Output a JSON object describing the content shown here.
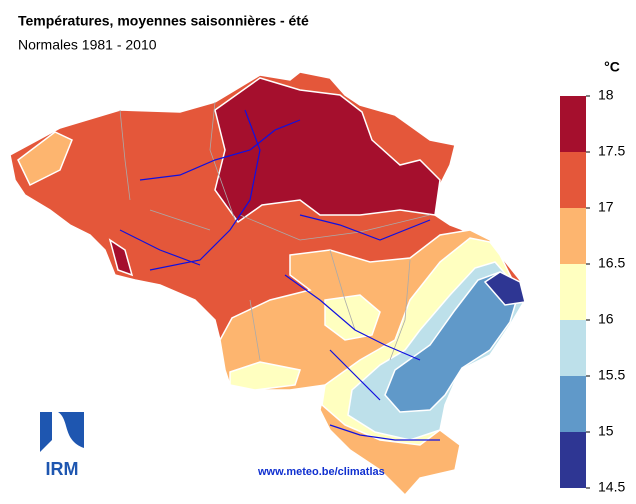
{
  "header": {
    "title": "Températures, moyennes saisonnières - été",
    "subtitle": "Normales 1981 - 2010"
  },
  "legend": {
    "unit": "°C",
    "ticks": [
      18,
      17.5,
      17,
      16.5,
      16,
      15.5,
      15,
      14.5
    ],
    "range": [
      14.5,
      18
    ],
    "colors": [
      "#a50f2d",
      "#e4573a",
      "#fdb56f",
      "#ffffc0",
      "#bde0ea",
      "#6099c9",
      "#2e3693"
    ]
  },
  "footer": {
    "url": "www.meteo.be/climatlas",
    "logo": "IRM"
  }
}
